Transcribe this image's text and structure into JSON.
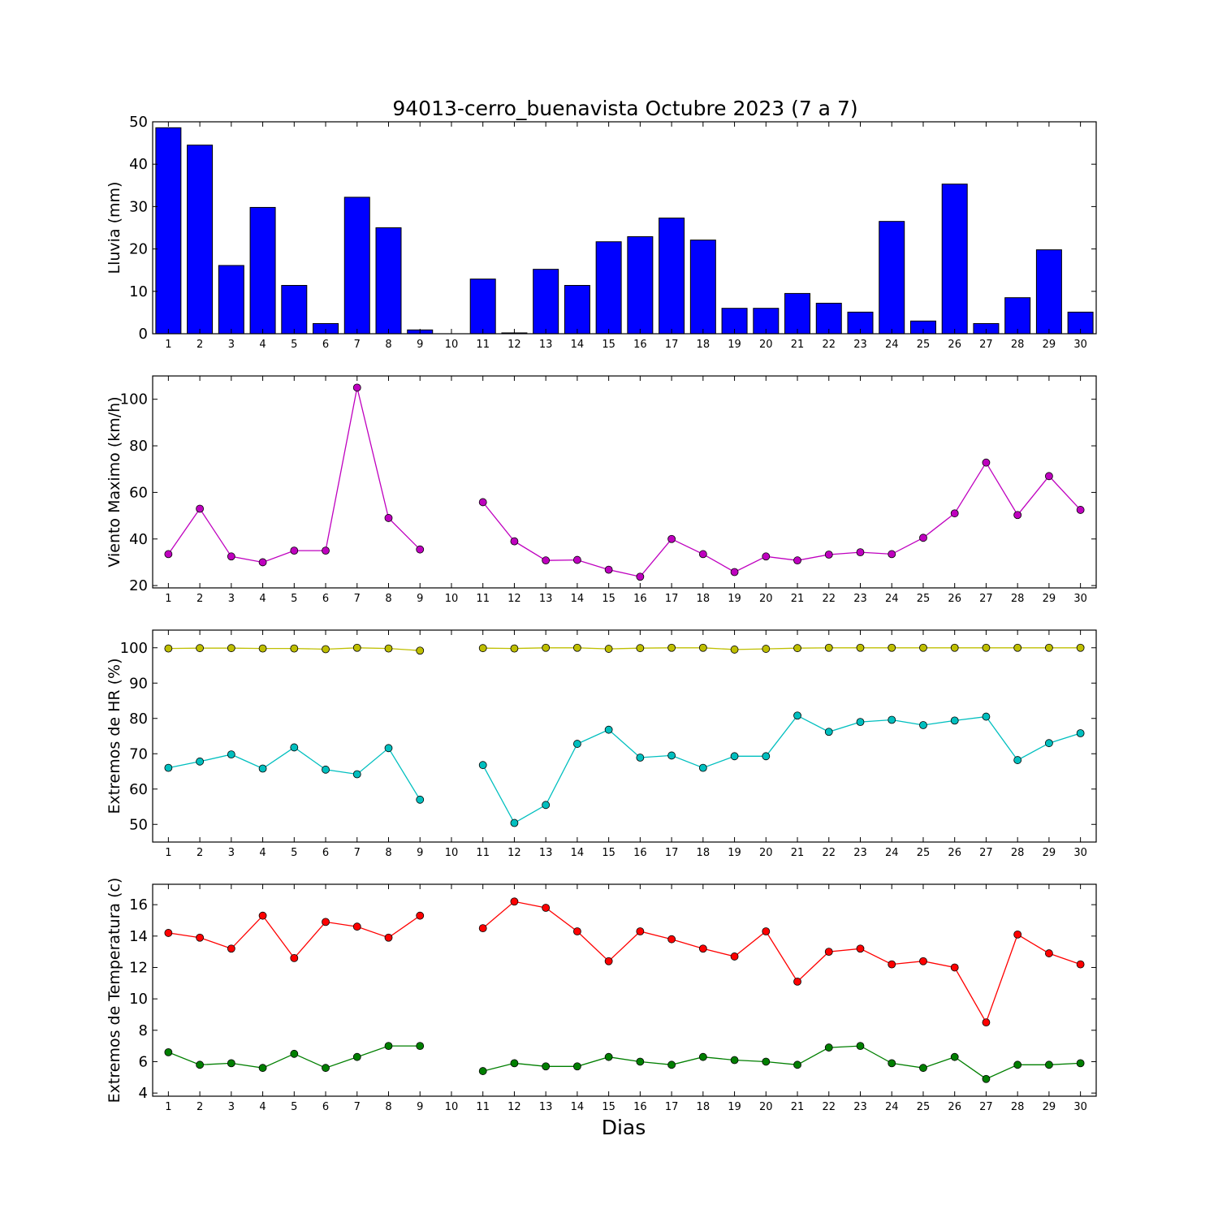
{
  "figure": {
    "title": "94013-cerro_buenavista Octubre 2023  (7 a 7)",
    "xlabel": "Dias"
  },
  "chart_data": [
    {
      "type": "bar",
      "ylabel": "Lluvia (mm)",
      "ylim": [
        0,
        50
      ],
      "yticks": [
        0,
        10,
        20,
        30,
        40,
        50
      ],
      "categories": [
        1,
        2,
        3,
        4,
        5,
        6,
        7,
        8,
        9,
        10,
        11,
        12,
        13,
        14,
        15,
        16,
        17,
        18,
        19,
        20,
        21,
        22,
        23,
        24,
        25,
        26,
        27,
        28,
        29,
        30
      ],
      "series": [
        {
          "values": [
            48.6,
            44.5,
            16.1,
            29.8,
            11.4,
            2.4,
            32.2,
            25.0,
            0.9,
            0.0,
            12.9,
            0.2,
            15.2,
            11.4,
            21.7,
            22.9,
            27.3,
            22.1,
            6.0,
            6.0,
            9.5,
            7.2,
            5.1,
            26.5,
            3.0,
            35.3,
            2.4,
            8.5,
            19.8,
            5.1
          ],
          "color": "#0000ff"
        }
      ]
    },
    {
      "type": "line",
      "ylabel": "Viento Maximo (km/h)",
      "ylim": [
        19,
        110
      ],
      "yticks": [
        20,
        40,
        60,
        80,
        100
      ],
      "x": [
        1,
        2,
        3,
        4,
        5,
        6,
        7,
        8,
        9,
        10,
        11,
        12,
        13,
        14,
        15,
        16,
        17,
        18,
        19,
        20,
        21,
        22,
        23,
        24,
        25,
        26,
        27,
        28,
        29,
        30
      ],
      "series": [
        {
          "values": [
            33.5,
            53,
            32.5,
            30,
            35,
            35,
            105,
            49,
            35.5,
            null,
            55.8,
            39,
            30.8,
            31,
            26.8,
            23.8,
            40,
            33.5,
            25.8,
            32.5,
            30.8,
            33.3,
            34.3,
            33.5,
            40.5,
            51,
            72.8,
            50.3,
            67,
            52.5
          ],
          "color": "#bf00bf"
        }
      ]
    },
    {
      "type": "line",
      "ylabel": "Extremos de HR (%)",
      "ylim": [
        45,
        105
      ],
      "yticks": [
        50,
        60,
        70,
        80,
        90,
        100
      ],
      "x": [
        1,
        2,
        3,
        4,
        5,
        6,
        7,
        8,
        9,
        10,
        11,
        12,
        13,
        14,
        15,
        16,
        17,
        18,
        19,
        20,
        21,
        22,
        23,
        24,
        25,
        26,
        27,
        28,
        29,
        30
      ],
      "series": [
        {
          "values": [
            99.8,
            99.9,
            99.9,
            99.8,
            99.8,
            99.6,
            100,
            99.8,
            99.2,
            null,
            99.9,
            99.8,
            100,
            100,
            99.7,
            99.9,
            100,
            100,
            99.5,
            99.7,
            99.9,
            100,
            100,
            100,
            100,
            100,
            100,
            100,
            100,
            100
          ],
          "color": "#bfbf00"
        },
        {
          "values": [
            66,
            67.8,
            69.8,
            65.8,
            71.8,
            65.5,
            64.2,
            71.6,
            57,
            null,
            66.8,
            50.4,
            55.5,
            72.8,
            76.8,
            68.9,
            69.5,
            66,
            69.3,
            69.3,
            80.8,
            76.2,
            79,
            79.6,
            78.1,
            79.4,
            80.5,
            68.2,
            73,
            75.8
          ],
          "color": "#00bfbf"
        }
      ]
    },
    {
      "type": "line",
      "ylabel": "Extremos de Temperatura (c)",
      "ylim": [
        3.8,
        17.3
      ],
      "yticks": [
        4,
        6,
        8,
        10,
        12,
        14,
        16
      ],
      "x": [
        1,
        2,
        3,
        4,
        5,
        6,
        7,
        8,
        9,
        10,
        11,
        12,
        13,
        14,
        15,
        16,
        17,
        18,
        19,
        20,
        21,
        22,
        23,
        24,
        25,
        26,
        27,
        28,
        29,
        30
      ],
      "series": [
        {
          "values": [
            14.2,
            13.9,
            13.2,
            15.3,
            12.6,
            14.9,
            14.6,
            13.9,
            15.3,
            null,
            14.5,
            16.2,
            15.8,
            14.3,
            12.4,
            14.3,
            13.8,
            13.2,
            12.7,
            14.3,
            11.1,
            13,
            13.2,
            12.2,
            12.4,
            12,
            8.5,
            14.1,
            12.9,
            12.2
          ],
          "color": "#ff0000"
        },
        {
          "values": [
            6.6,
            5.8,
            5.9,
            5.6,
            6.5,
            5.6,
            6.3,
            7,
            7,
            null,
            5.4,
            5.9,
            5.7,
            5.7,
            6.3,
            6,
            5.8,
            6.3,
            6.1,
            6,
            5.8,
            6.9,
            7,
            5.9,
            5.6,
            6.3,
            4.9,
            5.8,
            5.8,
            5.9
          ],
          "color": "#007f00"
        }
      ]
    }
  ]
}
